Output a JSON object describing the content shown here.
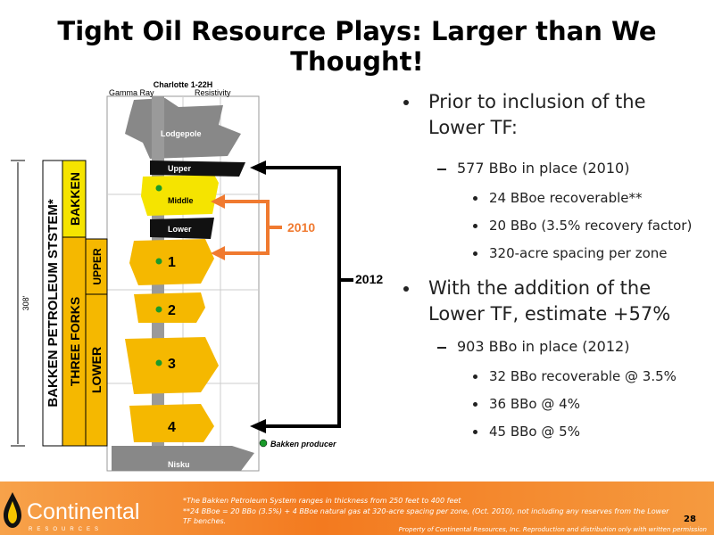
{
  "header": {
    "title": "Tight Oil Resource Plays: Larger than We Thought!"
  },
  "diagram": {
    "well": "Charlotte 1-22H",
    "left_track": "Gamma Ray",
    "right_track": "Resistivity",
    "formations": {
      "top": "Lodgepole",
      "upper": "Upper",
      "middle": "Middle",
      "lower": "Lower",
      "zones": [
        "1",
        "2",
        "3",
        "4"
      ],
      "bottom": "Nisku"
    },
    "system": "BAKKEN PETROLEUM STSTEM*",
    "bakken": "BAKKEN",
    "three_forks": "THREE FORKS",
    "tf_upper": "UPPER",
    "tf_lower": "LOWER",
    "thickness": "308'",
    "arrow_2010": "2010",
    "arrow_2012": "2012",
    "legend": "Bakken producer"
  },
  "bullets": [
    {
      "text": "Prior to inclusion of the Lower TF:",
      "items": [
        {
          "text": "577 BBo in place (2010)",
          "items": [
            "24 BBoe recoverable**",
            "20 BBo (3.5% recovery factor)",
            "320-acre spacing per zone"
          ]
        }
      ]
    },
    {
      "text": "With the addition of the Lower TF, estimate +57%",
      "items": [
        {
          "text": "903 BBo in place (2012)",
          "items": [
            "32 BBo recoverable @ 3.5%",
            "36 BBo @ 4%",
            "45 BBo @ 5%"
          ]
        }
      ]
    }
  ],
  "footer": {
    "logo": "Continental",
    "logo_sub": "RESOURCES",
    "notes": [
      "*The Bakken Petroleum System ranges in thickness from 250 feet to 400 feet",
      "**24 BBoe = 20 BBo (3.5%) + 4 BBoe natural gas at 320-acre spacing per zone, (Oct. 2010), not including any reserves from the Lower TF benches."
    ],
    "page": "28",
    "rights": "Property of Continental Resources, Inc. Reproduction and distribution only with written permission"
  }
}
